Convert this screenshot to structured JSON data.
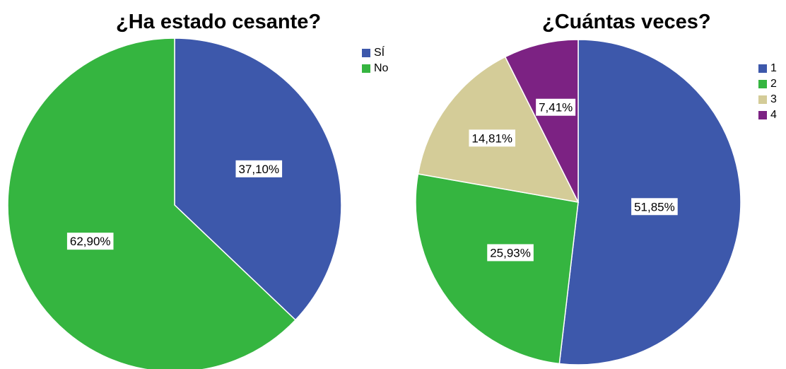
{
  "chart_data": [
    {
      "type": "pie",
      "title": "¿Ha estado cesante?",
      "categories": [
        "SÍ",
        "No"
      ],
      "values": [
        37.1,
        62.9
      ],
      "value_labels": [
        "37,10%",
        "62,90%"
      ],
      "colors": [
        "#3d58ab",
        "#35b540"
      ],
      "legend_position": "top-right"
    },
    {
      "type": "pie",
      "title": "¿Cuántas veces?",
      "categories": [
        "1",
        "2",
        "3",
        "4"
      ],
      "values": [
        51.85,
        25.93,
        14.81,
        7.41
      ],
      "value_labels": [
        "51,85%",
        "25,93%",
        "14,81%",
        "7,41%"
      ],
      "colors": [
        "#3d58ab",
        "#35b540",
        "#d4cc98",
        "#7c2283"
      ],
      "legend_position": "top-right"
    }
  ]
}
